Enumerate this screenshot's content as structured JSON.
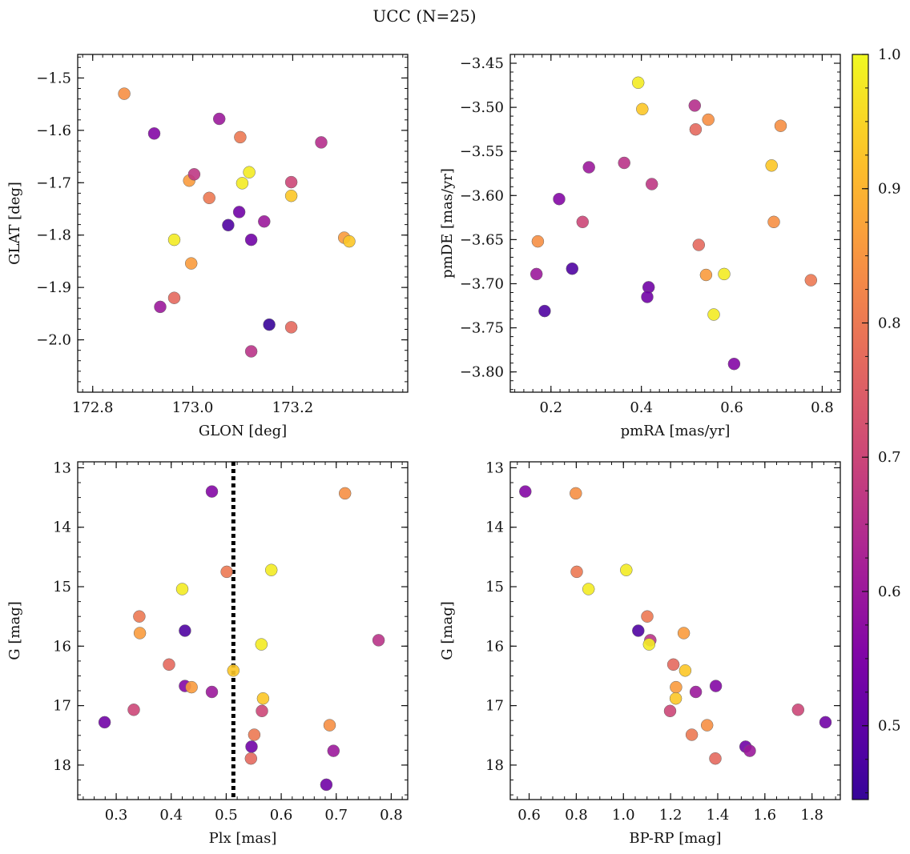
{
  "figure": {
    "title": "UCC (N=25)",
    "colorbar": {
      "cmap": "plasma",
      "range": [
        0.445,
        1.0
      ],
      "ticks": [
        0.5,
        0.6,
        0.7,
        0.8,
        0.9,
        1.0
      ],
      "tick_labels": [
        "0.5",
        "0.6",
        "0.7",
        "0.8",
        "0.9",
        "1.0"
      ]
    }
  },
  "chart_data": [
    {
      "type": "scatter",
      "xlabel": "GLON [deg]",
      "ylabel": "GLAT [deg]",
      "xlim": [
        172.77,
        173.43
      ],
      "ylim": [
        -2.1,
        -1.455
      ],
      "yinvert": false,
      "xticks": [
        172.8,
        173.0,
        173.2
      ],
      "xtick_labels": [
        "172.8",
        "173.0",
        "173.2"
      ],
      "xminor": 0.02,
      "yticks": [
        -1.5,
        -1.6,
        -1.7,
        -1.8,
        -1.9,
        -2.0
      ],
      "ytick_labels": [
        "−1.5",
        "−1.6",
        "−1.7",
        "−1.8",
        "−1.9",
        "−2.0"
      ],
      "yminor": 0.02,
      "points": [
        {
          "x": 172.863,
          "y": -1.53,
          "c": 0.84
        },
        {
          "x": 172.923,
          "y": -1.606,
          "c": 0.56
        },
        {
          "x": 172.935,
          "y": -1.937,
          "c": 0.6
        },
        {
          "x": 172.963,
          "y": -1.809,
          "c": 0.98
        },
        {
          "x": 172.963,
          "y": -1.92,
          "c": 0.77
        },
        {
          "x": 172.993,
          "y": -1.696,
          "c": 0.86
        },
        {
          "x": 172.997,
          "y": -1.854,
          "c": 0.86
        },
        {
          "x": 173.003,
          "y": -1.684,
          "c": 0.67
        },
        {
          "x": 173.033,
          "y": -1.729,
          "c": 0.8
        },
        {
          "x": 173.053,
          "y": -1.578,
          "c": 0.6
        },
        {
          "x": 173.071,
          "y": -1.781,
          "c": 0.48
        },
        {
          "x": 173.093,
          "y": -1.756,
          "c": 0.53
        },
        {
          "x": 173.095,
          "y": -1.613,
          "c": 0.8
        },
        {
          "x": 173.099,
          "y": -1.701,
          "c": 0.98
        },
        {
          "x": 173.113,
          "y": -1.68,
          "c": 0.98
        },
        {
          "x": 173.117,
          "y": -1.809,
          "c": 0.53
        },
        {
          "x": 173.117,
          "y": -2.022,
          "c": 0.66
        },
        {
          "x": 173.143,
          "y": -1.774,
          "c": 0.6
        },
        {
          "x": 173.153,
          "y": -1.971,
          "c": 0.45
        },
        {
          "x": 173.197,
          "y": -1.699,
          "c": 0.7
        },
        {
          "x": 173.197,
          "y": -1.725,
          "c": 0.93
        },
        {
          "x": 173.197,
          "y": -1.976,
          "c": 0.77
        },
        {
          "x": 173.257,
          "y": -1.623,
          "c": 0.65
        },
        {
          "x": 173.303,
          "y": -1.805,
          "c": 0.86
        },
        {
          "x": 173.313,
          "y": -1.812,
          "c": 0.93
        }
      ]
    },
    {
      "type": "scatter",
      "xlabel": "pmRA [mas/yr]",
      "ylabel": "pmDE [mas/yr]",
      "xlim": [
        0.11,
        0.84
      ],
      "ylim": [
        -3.823,
        -3.44
      ],
      "yinvert": false,
      "xticks": [
        0.2,
        0.4,
        0.6,
        0.8
      ],
      "xtick_labels": [
        "0.2",
        "0.4",
        "0.6",
        "0.8"
      ],
      "xminor": 0.02,
      "yticks": [
        -3.45,
        -3.5,
        -3.55,
        -3.6,
        -3.65,
        -3.7,
        -3.75,
        -3.8
      ],
      "ytick_labels": [
        "−3.45",
        "−3.50",
        "−3.55",
        "−3.60",
        "−3.65",
        "−3.70",
        "−3.75",
        "−3.80"
      ],
      "yminor": 0.01,
      "points": [
        {
          "x": 0.393,
          "y": -3.472,
          "c": 0.98
        },
        {
          "x": 0.402,
          "y": -3.502,
          "c": 0.93
        },
        {
          "x": 0.518,
          "y": -3.498,
          "c": 0.65
        },
        {
          "x": 0.548,
          "y": -3.514,
          "c": 0.84
        },
        {
          "x": 0.708,
          "y": -3.521,
          "c": 0.84
        },
        {
          "x": 0.52,
          "y": -3.525,
          "c": 0.77
        },
        {
          "x": 0.688,
          "y": -3.566,
          "c": 0.93
        },
        {
          "x": 0.284,
          "y": -3.568,
          "c": 0.6
        },
        {
          "x": 0.362,
          "y": -3.563,
          "c": 0.66
        },
        {
          "x": 0.423,
          "y": -3.587,
          "c": 0.67
        },
        {
          "x": 0.218,
          "y": -3.604,
          "c": 0.56
        },
        {
          "x": 0.27,
          "y": -3.63,
          "c": 0.7
        },
        {
          "x": 0.693,
          "y": -3.63,
          "c": 0.84
        },
        {
          "x": 0.171,
          "y": -3.652,
          "c": 0.84
        },
        {
          "x": 0.527,
          "y": -3.656,
          "c": 0.77
        },
        {
          "x": 0.247,
          "y": -3.683,
          "c": 0.48
        },
        {
          "x": 0.168,
          "y": -3.689,
          "c": 0.6
        },
        {
          "x": 0.543,
          "y": -3.69,
          "c": 0.86
        },
        {
          "x": 0.583,
          "y": -3.689,
          "c": 0.98
        },
        {
          "x": 0.775,
          "y": -3.696,
          "c": 0.8
        },
        {
          "x": 0.416,
          "y": -3.704,
          "c": 0.53
        },
        {
          "x": 0.413,
          "y": -3.715,
          "c": 0.53
        },
        {
          "x": 0.186,
          "y": -3.731,
          "c": 0.48
        },
        {
          "x": 0.56,
          "y": -3.735,
          "c": 0.98
        },
        {
          "x": 0.605,
          "y": -3.791,
          "c": 0.56
        }
      ]
    },
    {
      "type": "scatter",
      "xlabel": "Plx [mas]",
      "ylabel": "G [mag]",
      "xlim": [
        0.23,
        0.83
      ],
      "ylim": [
        12.9,
        18.58
      ],
      "yinvert": true,
      "xticks": [
        0.3,
        0.4,
        0.5,
        0.6,
        0.7,
        0.8
      ],
      "xtick_labels": [
        "0.3",
        "0.4",
        "0.5",
        "0.6",
        "0.7",
        "0.8"
      ],
      "xminor": 0.02,
      "yticks": [
        13,
        14,
        15,
        16,
        17,
        18
      ],
      "ytick_labels": [
        "13",
        "14",
        "15",
        "16",
        "17",
        "18"
      ],
      "yminor": 0.25,
      "vline": 0.513,
      "points": [
        {
          "x": 0.474,
          "y": 13.4,
          "c": 0.56
        },
        {
          "x": 0.716,
          "y": 13.43,
          "c": 0.84
        },
        {
          "x": 0.582,
          "y": 14.72,
          "c": 0.98
        },
        {
          "x": 0.501,
          "y": 14.75,
          "c": 0.8
        },
        {
          "x": 0.42,
          "y": 15.04,
          "c": 0.98
        },
        {
          "x": 0.342,
          "y": 15.5,
          "c": 0.8
        },
        {
          "x": 0.425,
          "y": 15.74,
          "c": 0.48
        },
        {
          "x": 0.343,
          "y": 15.78,
          "c": 0.86
        },
        {
          "x": 0.777,
          "y": 15.9,
          "c": 0.66
        },
        {
          "x": 0.564,
          "y": 15.97,
          "c": 0.98
        },
        {
          "x": 0.396,
          "y": 16.31,
          "c": 0.77
        },
        {
          "x": 0.513,
          "y": 16.41,
          "c": 0.93
        },
        {
          "x": 0.425,
          "y": 16.67,
          "c": 0.56
        },
        {
          "x": 0.437,
          "y": 16.69,
          "c": 0.86
        },
        {
          "x": 0.474,
          "y": 16.77,
          "c": 0.6
        },
        {
          "x": 0.567,
          "y": 16.88,
          "c": 0.93
        },
        {
          "x": 0.332,
          "y": 17.07,
          "c": 0.7
        },
        {
          "x": 0.565,
          "y": 17.09,
          "c": 0.7
        },
        {
          "x": 0.279,
          "y": 17.28,
          "c": 0.53
        },
        {
          "x": 0.688,
          "y": 17.33,
          "c": 0.84
        },
        {
          "x": 0.551,
          "y": 17.49,
          "c": 0.8
        },
        {
          "x": 0.546,
          "y": 17.69,
          "c": 0.53
        },
        {
          "x": 0.695,
          "y": 17.76,
          "c": 0.6
        },
        {
          "x": 0.545,
          "y": 17.89,
          "c": 0.77
        },
        {
          "x": 0.682,
          "y": 18.33,
          "c": 0.53
        }
      ]
    },
    {
      "type": "scatter",
      "xlabel": "BP-RP [mag]",
      "ylabel": "G [mag]",
      "xlim": [
        0.52,
        1.92
      ],
      "ylim": [
        12.9,
        18.58
      ],
      "yinvert": true,
      "xticks": [
        0.6,
        0.8,
        1.0,
        1.2,
        1.4,
        1.6,
        1.8
      ],
      "xtick_labels": [
        "0.6",
        "0.8",
        "1.0",
        "1.2",
        "1.4",
        "1.6",
        "1.8"
      ],
      "xminor": 0.05,
      "yticks": [
        13,
        14,
        15,
        16,
        17,
        18
      ],
      "ytick_labels": [
        "13",
        "14",
        "15",
        "16",
        "17",
        "18"
      ],
      "yminor": 0.25,
      "points": [
        {
          "x": 0.584,
          "y": 13.4,
          "c": 0.56
        },
        {
          "x": 0.798,
          "y": 13.43,
          "c": 0.84
        },
        {
          "x": 0.802,
          "y": 14.75,
          "c": 0.8
        },
        {
          "x": 1.012,
          "y": 14.72,
          "c": 0.98
        },
        {
          "x": 0.852,
          "y": 15.04,
          "c": 0.98
        },
        {
          "x": 1.101,
          "y": 15.5,
          "c": 0.8
        },
        {
          "x": 1.063,
          "y": 15.74,
          "c": 0.48
        },
        {
          "x": 1.256,
          "y": 15.78,
          "c": 0.86
        },
        {
          "x": 1.114,
          "y": 15.9,
          "c": 0.66
        },
        {
          "x": 1.109,
          "y": 15.97,
          "c": 0.98
        },
        {
          "x": 1.212,
          "y": 16.31,
          "c": 0.77
        },
        {
          "x": 1.262,
          "y": 16.41,
          "c": 0.93
        },
        {
          "x": 1.392,
          "y": 16.67,
          "c": 0.56
        },
        {
          "x": 1.223,
          "y": 16.69,
          "c": 0.86
        },
        {
          "x": 1.307,
          "y": 16.77,
          "c": 0.6
        },
        {
          "x": 1.222,
          "y": 16.88,
          "c": 0.93
        },
        {
          "x": 1.741,
          "y": 17.07,
          "c": 0.7
        },
        {
          "x": 1.198,
          "y": 17.09,
          "c": 0.7
        },
        {
          "x": 1.857,
          "y": 17.28,
          "c": 0.53
        },
        {
          "x": 1.355,
          "y": 17.33,
          "c": 0.84
        },
        {
          "x": 1.29,
          "y": 17.49,
          "c": 0.8
        },
        {
          "x": 1.518,
          "y": 17.69,
          "c": 0.53
        },
        {
          "x": 1.536,
          "y": 17.76,
          "c": 0.6
        },
        {
          "x": 1.39,
          "y": 17.89,
          "c": 0.77
        }
      ]
    }
  ]
}
